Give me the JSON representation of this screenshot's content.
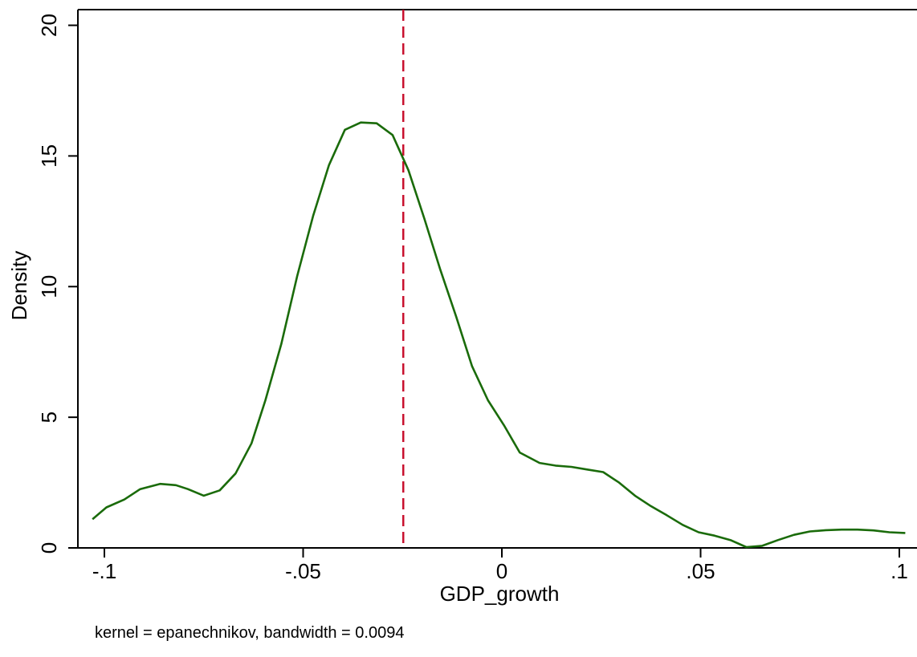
{
  "chart_data": {
    "type": "line",
    "xlabel": "GDP_growth",
    "ylabel": "Density",
    "note": "kernel = epanechnikov, bandwidth = 0.0094",
    "xlim": [
      -0.103,
      0.1025
    ],
    "ylim": [
      0,
      20.6
    ],
    "x_ticks": [
      -0.1,
      -0.05,
      0,
      0.05,
      0.1
    ],
    "x_tick_labels": [
      "-.1",
      "-.05",
      "0",
      ".05",
      ".1"
    ],
    "y_ticks": [
      0,
      5,
      10,
      15,
      20
    ],
    "y_tick_labels": [
      "0",
      "5",
      "10",
      "15",
      "20"
    ],
    "reference_line": {
      "x": -0.0248,
      "color": "#c8102e",
      "style": "dashed"
    },
    "series": [
      {
        "color": "#1a6b0a",
        "x": [
          -0.103,
          -0.0995,
          -0.095,
          -0.091,
          -0.086,
          -0.082,
          -0.079,
          -0.075,
          -0.071,
          -0.067,
          -0.063,
          -0.0595,
          -0.0555,
          -0.0515,
          -0.0475,
          -0.0435,
          -0.0395,
          -0.0355,
          -0.0315,
          -0.0275,
          -0.0235,
          -0.0195,
          -0.0155,
          -0.0115,
          -0.0075,
          -0.0035,
          0.0005,
          0.0045,
          0.0095,
          0.0135,
          0.0175,
          0.0215,
          0.0255,
          0.0295,
          0.0335,
          0.0375,
          0.0415,
          0.0455,
          0.0495,
          0.0535,
          0.0575,
          0.0615,
          0.0655,
          0.0695,
          0.0735,
          0.0775,
          0.0815,
          0.0855,
          0.0895,
          0.0935,
          0.0975,
          0.1015
        ],
        "values": [
          1.1,
          1.55,
          1.85,
          2.25,
          2.45,
          2.4,
          2.25,
          2.0,
          2.2,
          2.85,
          4.0,
          5.65,
          7.8,
          10.4,
          12.7,
          14.65,
          16.0,
          16.28,
          16.25,
          15.8,
          14.45,
          12.6,
          10.65,
          8.85,
          6.95,
          5.65,
          4.7,
          3.65,
          3.25,
          3.15,
          3.1,
          3.0,
          2.9,
          2.5,
          2.0,
          1.6,
          1.25,
          0.88,
          0.6,
          0.47,
          0.3,
          0.03,
          0.08,
          0.3,
          0.5,
          0.63,
          0.68,
          0.7,
          0.7,
          0.67,
          0.6,
          0.57
        ]
      }
    ],
    "grid": false
  }
}
